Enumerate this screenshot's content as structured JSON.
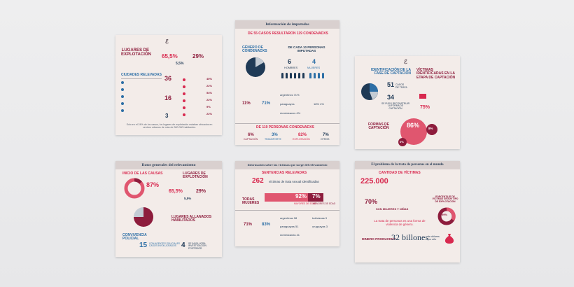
{
  "colors": {
    "maroon": "#8d1c3c",
    "red": "#d8294f",
    "blue": "#2d6fa6",
    "navy": "#1f3a56",
    "bg": "#f3ece9"
  },
  "card1": {
    "logo": "ℰ",
    "title": "LUGARES DE EXPLOTACIÓN",
    "pct1": "65,5%",
    "pct2": "29%",
    "pct3": "5,5%",
    "sub_title": "CIUDADES RELEVADAS",
    "n1": "36",
    "n2": "16",
    "n3": "3",
    "footer": "Solo en el 24% de los casos, los lugares de explotación estaban ubicados en centros urbanos de más de 300 000 habitantes.",
    "pcts": [
      "40%",
      "22%",
      "54%",
      "22%",
      "9%",
      "22%"
    ]
  },
  "card2": {
    "header": "Información de imputadas",
    "lead": "DE 55 CASOS RESULTARON 119 CONDENADXS",
    "gender_title": "GÉNERO DE CONDENADXS",
    "per10": "DE CADA 10 PERSONAS IMPUTADAS",
    "men": "6",
    "men_label": "HOMBRES",
    "women": "4",
    "women_label": "MUJERES",
    "pct_arg": "71%",
    "pct_ext": "11%",
    "rows": [
      "argentinxs 71%",
      "paraguayxs",
      "18% 4%",
      "dominicanxs 4%"
    ],
    "lead2": "DE 119 PERSONAS CONDENADXS",
    "stats": [
      "6%",
      "3%",
      "82%",
      "7%"
    ],
    "stat_labels": [
      "CAPTACIÓN",
      "TRANSPORTE",
      "EXPLOTACIÓN",
      "OTROS"
    ]
  },
  "card3": {
    "logo": "ℰ",
    "title1": "IDENTIFICACIÓN DE LA FASE DE CAPTACIÓN",
    "n51": "51",
    "n51_lbl": "CASOS DE TRATA",
    "n34": "34",
    "n34_lbl": "SE PUDO RECONSTRUIR LA FORMA DE CAPTACIÓN",
    "title2": "VÍCTIMAS IDENTIFICADAS EN LA ETAPA DE CAPTACIÓN",
    "pct75": "75%",
    "title3": "FORMAS DE CAPTACIÓN",
    "pct86": "86%",
    "pct8": "8%",
    "pct6": "6%"
  },
  "card4": {
    "header": "Datos generales del relevamiento",
    "title1": "INICIO DE LAS CAUSAS",
    "pct87": "87%",
    "title2": "LUGARES DE EXPLOTACIÓN",
    "pct655": "65,5%",
    "pct29": "29%",
    "pct55": "5,5%",
    "title3": "LUGARES ALLANADOS HABILITADOS",
    "title4": "CONVIVENCIA POLICIAL",
    "n15": "15",
    "n4": "4",
    "lbl15": "CON AGENTES POLICIALES CASOS INVOLUCRADOS",
    "lbl4": "SE INVOLUCRA INVESTIGACIÓN POSTERIOR"
  },
  "card5": {
    "header": "Información sobre las víctimas que surge del relevamiento",
    "title": "SENTENCIAS RELEVADAS",
    "n262": "262",
    "n262_lbl": "víctimas de trata sexual identificadas",
    "todas": "TODAS MUJERES",
    "pct92": "92%",
    "pct7": "7%",
    "lbl92": "MAYORES DE EDAD",
    "lbl7": "MENORES DE EDAD",
    "pct71": "71%",
    "pct83": "83%",
    "rows": [
      "argentinas 98",
      "paraguayas 51",
      "dominicanas 41",
      "bolivianas 9",
      "uruguayas 3"
    ]
  },
  "card6": {
    "header": "El problema de la trata de personas en el mundo",
    "title": "CANTIDAD DE VÍCTIMAS",
    "big": "225.000",
    "pct70": "70%",
    "lbl70": "SON MUJERES Y NIÑAS",
    "pct_right": "PORCENTAJE DE VÍCTIMAS SEGÚN TIPO DE EXPLOTACIÓN",
    "pct59": "59%",
    "mid": "La trata de personas es una forma de violencia de género.",
    "money_lbl": "DINERO PRODUCIDO:",
    "money": "32 billones",
    "money_unit": "de dólares por año"
  }
}
